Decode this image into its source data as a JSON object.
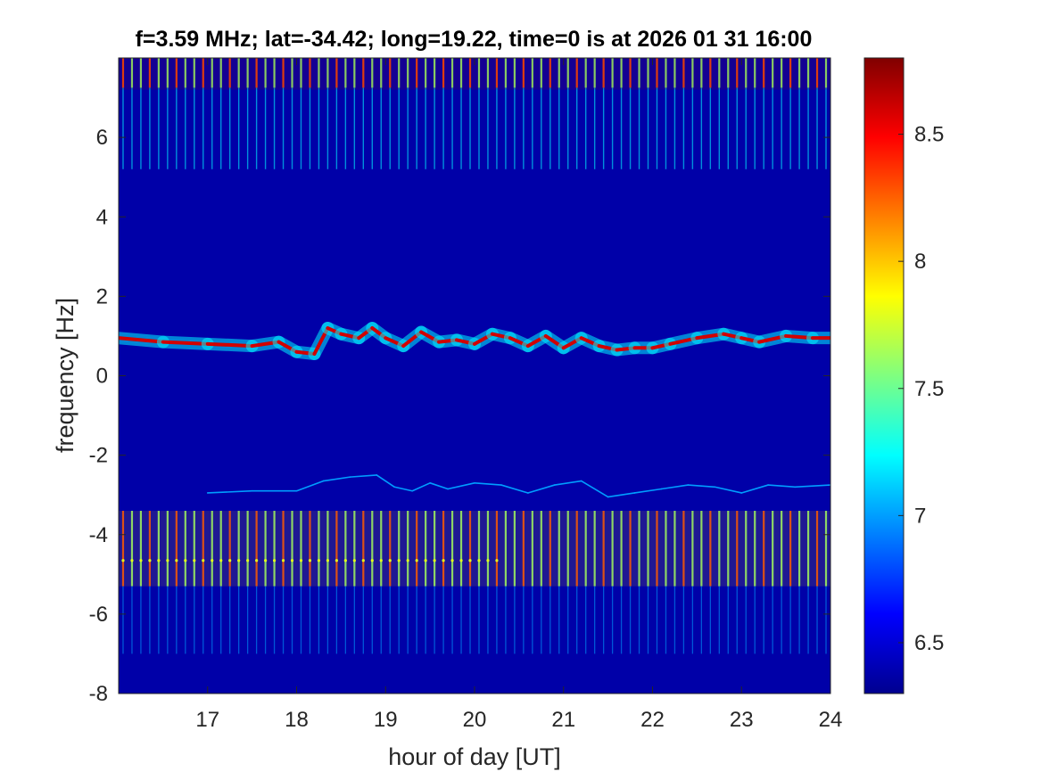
{
  "chart_data": {
    "type": "heatmap",
    "title": "f=3.59 MHz;  lat=-34.42; long=19.22, time=0 is at 2026 01 31 16:00",
    "xlabel": "hour of day [UT]",
    "ylabel": "frequency [Hz]",
    "xlim": [
      16.0,
      24.0
    ],
    "ylim": [
      -8,
      8
    ],
    "xticks": [
      17,
      18,
      19,
      20,
      21,
      22,
      23,
      24
    ],
    "yticks": [
      -8,
      -6,
      -4,
      -2,
      0,
      2,
      4,
      6
    ],
    "colorbar": {
      "clim": [
        6.3,
        8.8
      ],
      "ticks": [
        6.5,
        7,
        7.5,
        8,
        8.5
      ],
      "colormap": "jet",
      "placement": "right"
    },
    "background_level": 6.4,
    "features": {
      "main_doppler_trace": {
        "level": 8.6,
        "hours": [
          16.0,
          16.5,
          17.0,
          17.5,
          17.8,
          18.0,
          18.2,
          18.35,
          18.5,
          18.7,
          18.85,
          19.0,
          19.2,
          19.4,
          19.6,
          19.8,
          20.0,
          20.2,
          20.4,
          20.6,
          20.8,
          21.0,
          21.2,
          21.4,
          21.6,
          21.8,
          22.0,
          22.2,
          22.5,
          22.8,
          23.0,
          23.2,
          23.5,
          23.8,
          24.0
        ],
        "freq_hz": [
          0.95,
          0.85,
          0.8,
          0.75,
          0.85,
          0.6,
          0.55,
          1.2,
          1.05,
          0.95,
          1.2,
          0.95,
          0.75,
          1.1,
          0.85,
          0.9,
          0.8,
          1.05,
          0.95,
          0.75,
          1.0,
          0.7,
          0.95,
          0.75,
          0.65,
          0.7,
          0.7,
          0.8,
          0.95,
          1.05,
          0.95,
          0.85,
          1.0,
          0.95,
          0.95
        ]
      },
      "secondary_trace": {
        "level": 7.0,
        "hours": [
          17.0,
          17.5,
          18.0,
          18.3,
          18.6,
          18.9,
          19.1,
          19.3,
          19.5,
          19.7,
          20.0,
          20.3,
          20.6,
          20.9,
          21.2,
          21.5,
          21.8,
          22.1,
          22.4,
          22.7,
          23.0,
          23.3,
          23.6,
          24.0
        ],
        "freq_hz": [
          -2.95,
          -2.9,
          -2.9,
          -2.65,
          -2.55,
          -2.5,
          -2.8,
          -2.9,
          -2.7,
          -2.85,
          -2.7,
          -2.75,
          -2.95,
          -2.75,
          -2.65,
          -3.05,
          -2.95,
          -2.85,
          -2.75,
          -2.8,
          -2.95,
          -2.75,
          -2.8,
          -2.75
        ]
      },
      "periodic_vertical_stripes": {
        "spacing_hours": 0.1,
        "levels": [
          7.6,
          8.3
        ]
      },
      "dense_bands": [
        {
          "freq_range_hz": [
            7.2,
            8.0
          ],
          "level": 8.7
        },
        {
          "freq_range_hz": [
            -5.3,
            -3.4
          ],
          "level": 8.0
        }
      ]
    }
  }
}
